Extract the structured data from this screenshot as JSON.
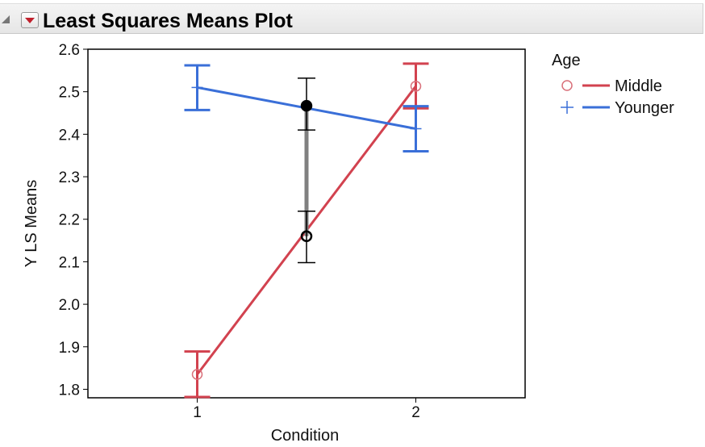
{
  "report": {
    "title": "Least Squares Means Plot"
  },
  "chart_data": {
    "type": "line",
    "title": "Least Squares Means Plot",
    "xlabel": "Condition",
    "ylabel": "Y LS Means",
    "categories": [
      "1",
      "2"
    ],
    "ylim": [
      1.78,
      2.6
    ],
    "yticks": [
      "1.8",
      "1.9",
      "2.0",
      "2.1",
      "2.2",
      "2.3",
      "2.4",
      "2.5",
      "2.6"
    ],
    "grid": false,
    "legend": {
      "title": "Age",
      "placement": "right"
    },
    "series": [
      {
        "name": "Middle",
        "marker": "circle",
        "color": "#d2424f",
        "values": [
          1.835,
          2.513
        ],
        "lower": [
          1.782,
          2.461
        ],
        "upper": [
          1.889,
          2.566
        ]
      },
      {
        "name": "Younger",
        "marker": "plus",
        "color": "#3a6fd8",
        "values": [
          2.51,
          2.413
        ],
        "lower": [
          2.457,
          2.36
        ],
        "upper": [
          2.562,
          2.466
        ]
      }
    ],
    "comparison": {
      "x": 1.5,
      "top": {
        "value": 2.467,
        "lower": 2.41,
        "upper": 2.532
      },
      "bottom": {
        "value": 2.16,
        "lower": 2.098,
        "upper": 2.219
      }
    }
  }
}
